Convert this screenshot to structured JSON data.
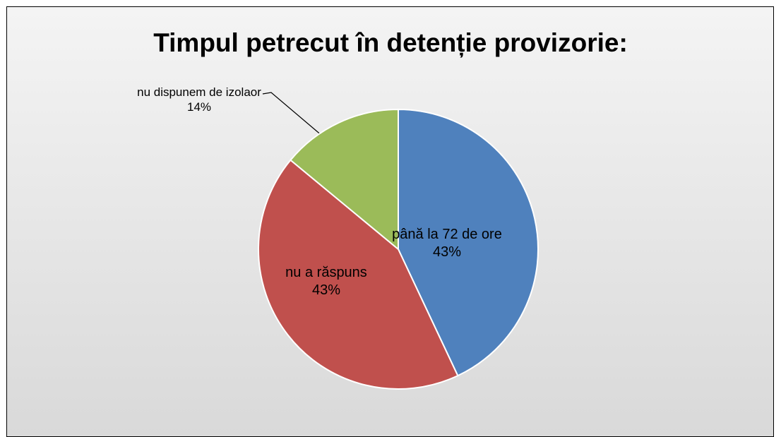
{
  "chart_data": {
    "type": "pie",
    "title": "Timpul petrecut în detenție provizorie:",
    "categories": [
      "până la 72 de ore",
      "nu a răspuns",
      "nu dispunem de izolaor"
    ],
    "values": [
      43,
      43,
      14
    ],
    "value_labels": [
      "43%",
      "43%",
      "14%"
    ],
    "colors": [
      "#4f81bd",
      "#c0504d",
      "#9bbb59"
    ]
  }
}
